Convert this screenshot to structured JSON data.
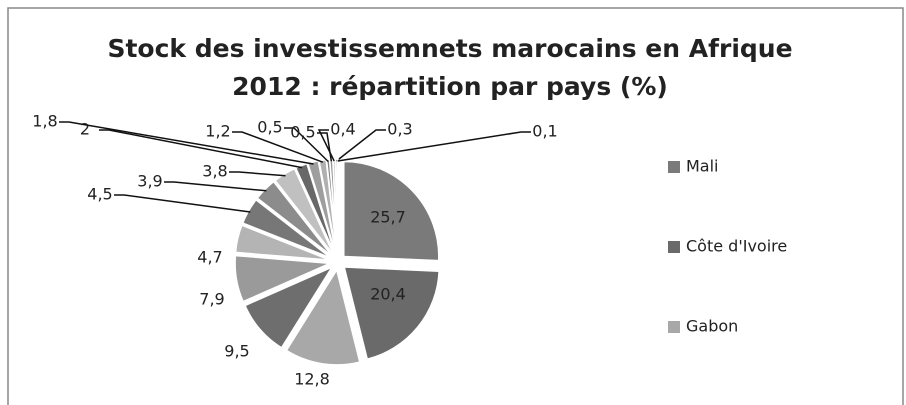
{
  "chart_data": {
    "type": "pie",
    "title": "Stock des investissemnets marocains en Afrique 2012 : répartition par pays (%)",
    "categories": [
      "Mali",
      "Côte d'Ivoire",
      "Gabon",
      null,
      null,
      null,
      null,
      null,
      null,
      null,
      null,
      null,
      null,
      null,
      null,
      null,
      null
    ],
    "values": [
      25.7,
      20.4,
      12.8,
      9.5,
      7.9,
      4.7,
      4.5,
      3.9,
      3.8,
      2,
      1.8,
      1.2,
      0.5,
      0.5,
      0.4,
      0.3,
      0.1
    ],
    "value_labels": [
      "25,7",
      "20,4",
      "12,8",
      "9,5",
      "7,9",
      "4,7",
      "4,5",
      "3,9",
      "3,8",
      "2",
      "1,8",
      "1,2",
      "0,5",
      "0,5",
      "0,4",
      "0,3",
      "0,1"
    ],
    "colors": [
      "#7a7a7a",
      "#6a6a6a",
      "#a8a8a8",
      "#6e6e6e",
      "#9a9a9a",
      "#b4b4b4",
      "#777777",
      "#8c8c8c",
      "#c0c0c0",
      "#686868",
      "#9e9e9e",
      "#b0b0b0",
      "#7e7e7e",
      "#939393",
      "#c8c8c8",
      "#8a8a8a",
      "#a0a0a0"
    ],
    "legend": "right"
  }
}
